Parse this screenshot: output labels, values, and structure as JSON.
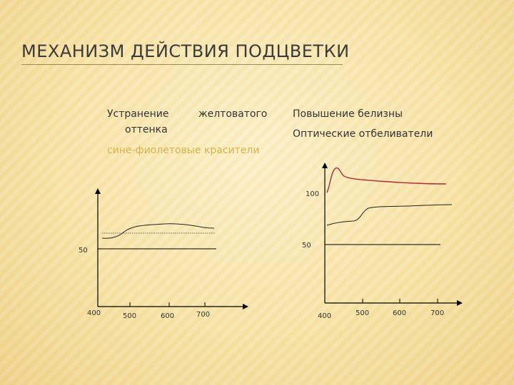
{
  "title": "МЕХАНИЗМ ДЕЙСТВИЯ ПОДЦВЕТКИ",
  "left": {
    "heading_part1": "Устранение",
    "heading_part2": "желтоватого",
    "heading_part3": "оттенка",
    "subheading": "сине-фиолетовые красители",
    "y_label_50": "50",
    "x_ticks": [
      "400",
      "500",
      "600",
      "700"
    ]
  },
  "right": {
    "heading": "Повышение белизны",
    "subheading": "Оптические отбеливатели",
    "y_label_100": "100",
    "y_label_50": "50",
    "x_ticks": [
      "400",
      "500",
      "600",
      "700"
    ]
  },
  "colors": {
    "accent_text": "#d8b24a",
    "curve_red": "#b02a3a",
    "axis": "#000000"
  }
}
